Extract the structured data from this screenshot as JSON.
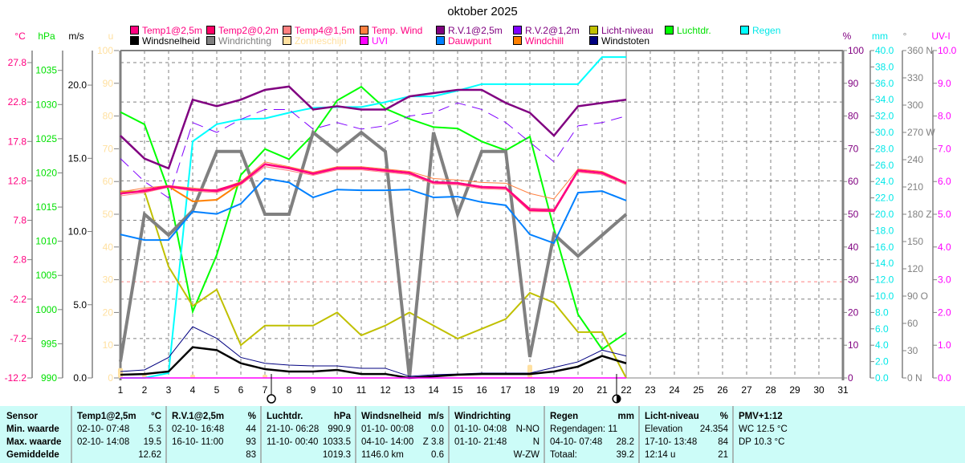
{
  "chart_data": {
    "type": "line",
    "title": "oktober 2025",
    "x": [
      1,
      2,
      3,
      4,
      5,
      6,
      7,
      8,
      9,
      10,
      11,
      12,
      13,
      14,
      15,
      16,
      17,
      18,
      19,
      20,
      21,
      22
    ],
    "x_ticks": [
      "1",
      "2",
      "3",
      "4",
      "5",
      "6",
      "7",
      "8",
      "9",
      "10",
      "11",
      "12",
      "13",
      "14",
      "15",
      "16",
      "17",
      "18",
      "19",
      "20",
      "21",
      "22",
      "23",
      "24",
      "25",
      "26",
      "27",
      "28",
      "29",
      "30",
      "31"
    ],
    "xlim": [
      1,
      31
    ],
    "grid": true,
    "legend_placement": "top",
    "axes": {
      "temp": {
        "label": "°C",
        "color": "#ff0080",
        "range": [
          -12.2,
          29.33
        ],
        "ticks": [
          "27.8",
          "22.8",
          "17.8",
          "12.8",
          "7.8",
          "2.8",
          "-2.2",
          "-7.2",
          "-12.2"
        ]
      },
      "hpa": {
        "label": "hPa",
        "color": "#00e000",
        "range": [
          990,
          1037.9
        ],
        "ticks": [
          "1035",
          "1030",
          "1025",
          "1020",
          "1015",
          "1010",
          "1005",
          "1000",
          "995",
          "990"
        ]
      },
      "ms": {
        "label": "m/s",
        "color": "#000000",
        "range": [
          0,
          22.36
        ],
        "ticks": [
          "20.0",
          "15.0",
          "10.0",
          "5.0",
          "0.0"
        ]
      },
      "u": {
        "label": "u",
        "color": "#ffe0a0",
        "range": [
          0,
          100
        ],
        "ticks": [
          "100",
          "90",
          "80",
          "70",
          "60",
          "50",
          "40",
          "30",
          "20",
          "10",
          "0"
        ]
      },
      "pct": {
        "label": "%",
        "color": "#800080",
        "range": [
          0,
          100
        ],
        "ticks": [
          "100",
          "90",
          "80",
          "70",
          "60",
          "50",
          "40",
          "30",
          "20",
          "10",
          "0"
        ]
      },
      "mm": {
        "label": "mm",
        "color": "#00e8e8",
        "range": [
          0,
          40
        ],
        "ticks": [
          "40.0",
          "38.0",
          "36.0",
          "34.0",
          "32.0",
          "30.0",
          "28.0",
          "26.0",
          "24.0",
          "22.0",
          "20.0",
          "18.0",
          "16.0",
          "14.0",
          "12.0",
          "10.0",
          "8.0",
          "6.0",
          "4.0",
          "2.0",
          "0.0"
        ]
      },
      "deg": {
        "label": "°",
        "color": "#808080",
        "range": [
          0,
          360
        ],
        "ticks": [
          "360 N",
          "330",
          "300",
          "270 W",
          "240",
          "210",
          "180 Z",
          "150",
          "120",
          "90  O",
          "60",
          "30",
          "0    N"
        ]
      },
      "uv": {
        "label": "UV-I",
        "color": "#ff00ff",
        "range": [
          0,
          10
        ],
        "ticks": [
          "10.0",
          "9.0",
          "8.0",
          "7.0",
          "6.0",
          "5.0",
          "4.0",
          "3.0",
          "2.0",
          "1.0",
          "0.0"
        ]
      }
    },
    "series": [
      {
        "name": "Luchtdr.",
        "axis": "hpa",
        "color": "#00ff00",
        "width": 2,
        "values": [
          1028.9,
          1027.1,
          1017.4,
          999.7,
          1008.0,
          1019.7,
          1023.5,
          1022.0,
          1025.6,
          1030.6,
          1032.6,
          1029.4,
          1027.9,
          1026.7,
          1026.5,
          1024.6,
          1023.3,
          1025.3,
          1011.8,
          999.3,
          994.2,
          996.6
        ]
      },
      {
        "name": "Regen",
        "axis": "mm",
        "color": "#00ffff",
        "width": 2,
        "values": [
          0,
          0,
          0.6,
          28.9,
          31.0,
          31.6,
          31.7,
          32.4,
          33.0,
          33.1,
          33.1,
          33.7,
          34.4,
          34.4,
          35.1,
          35.9,
          35.9,
          35.9,
          35.9,
          35.9,
          39.2,
          39.2
        ]
      },
      {
        "name": "Licht-niveau",
        "axis": "pct",
        "color": "#c0c000",
        "width": 2,
        "values": [
          57,
          57,
          34,
          22,
          27,
          10,
          16,
          16,
          16,
          20,
          13,
          16,
          20,
          16,
          12,
          15,
          18,
          26,
          23,
          14,
          14,
          0
        ]
      },
      {
        "name": "R.V.2@1,2m",
        "axis": "pct",
        "color": "#8000ff",
        "width": 1,
        "dash": "14 8",
        "values": [
          67,
          60,
          55,
          78,
          75,
          79,
          82,
          82,
          76,
          78,
          76,
          77,
          80,
          81,
          84,
          82,
          78,
          72,
          66,
          77,
          78,
          80
        ]
      },
      {
        "name": "R.V.1@2,5m",
        "axis": "pct",
        "color": "#800080",
        "width": 2.5,
        "values": [
          74,
          67,
          64,
          85,
          83,
          85,
          88,
          89,
          82,
          83,
          82,
          82,
          86,
          87,
          88,
          88,
          84,
          81,
          74,
          83,
          84,
          85
        ]
      },
      {
        "name": "Windrichting",
        "axis": "deg",
        "color": "#808080",
        "width": 4,
        "values": [
          18,
          180,
          157,
          184,
          249,
          249,
          180,
          180,
          270,
          249,
          270,
          249,
          0,
          270,
          180,
          249,
          249,
          23,
          158,
          134,
          157,
          180
        ]
      },
      {
        "name": "Dauwpunt",
        "axis": "temp",
        "color": "#0080ff",
        "width": 2,
        "values": [
          6.0,
          5.3,
          5.3,
          8.9,
          8.6,
          9.9,
          13.1,
          12.6,
          10.7,
          11.7,
          11.6,
          11.6,
          11.7,
          10.7,
          10.8,
          10.1,
          9.7,
          6.0,
          4.9,
          11.3,
          11.5,
          10.3
        ]
      },
      {
        "name": "Temp. Wind",
        "axis": "temp",
        "color": "#ff8040",
        "width": 1,
        "values": [
          11.4,
          11.9,
          12.2,
          11.9,
          11.6,
          12.7,
          15.2,
          14.6,
          13.9,
          14.6,
          14.6,
          14.3,
          14.0,
          13.1,
          12.9,
          12.6,
          12.5,
          11.2,
          10.5,
          14.3,
          14.0,
          12.6
        ]
      },
      {
        "name": "Temp4@1,5m",
        "axis": "temp",
        "color": "#ff8080",
        "width": 1,
        "values": [
          10.9,
          11.3,
          12.0,
          11.5,
          11.3,
          12.3,
          14.6,
          14.1,
          13.5,
          14.2,
          14.2,
          13.9,
          13.6,
          12.4,
          12.3,
          11.8,
          11.7,
          8.9,
          8.9,
          13.9,
          13.6,
          12.3
        ]
      },
      {
        "name": "Temp2@0,2m",
        "axis": "temp",
        "color": "#ff0066",
        "width": 1,
        "values": [
          11.1,
          11.7,
          12.2,
          11.6,
          11.7,
          12.6,
          15.0,
          14.5,
          13.8,
          14.5,
          14.5,
          14.2,
          13.9,
          12.7,
          12.6,
          12.1,
          12.0,
          9.3,
          9.2,
          14.2,
          13.9,
          12.6
        ]
      },
      {
        "name": "Windchill",
        "axis": "temp",
        "color": "#ff8000",
        "width": 2,
        "values": [
          11.2,
          11.5,
          12.1,
          10.2,
          10.4,
          12.5,
          14.9,
          14.4,
          13.7,
          14.4,
          14.4,
          14.1,
          13.8,
          12.6,
          12.5,
          12.0,
          11.9,
          9.1,
          9.0,
          14.1,
          13.8,
          12.5
        ]
      },
      {
        "name": "Temp1@2,5m",
        "axis": "temp",
        "color": "#ff0080",
        "width": 2.5,
        "values": [
          11.2,
          11.5,
          12.1,
          11.7,
          11.5,
          12.5,
          14.9,
          14.4,
          13.7,
          14.4,
          14.4,
          14.1,
          13.8,
          12.6,
          12.5,
          12.0,
          11.9,
          9.1,
          9.0,
          14.1,
          13.8,
          12.5
        ]
      },
      {
        "name": "Windstoten",
        "axis": "ms",
        "color": "#000080",
        "width": 1,
        "values": [
          0.44,
          0.55,
          1.4,
          3.5,
          2.7,
          1.4,
          1.0,
          0.88,
          0.82,
          0.82,
          0.66,
          0.66,
          0.11,
          0.22,
          0.27,
          0.33,
          0.33,
          0.33,
          0.71,
          1.1,
          1.9,
          1.5
        ]
      },
      {
        "name": "Windsnelheid",
        "axis": "ms",
        "color": "#000000",
        "width": 2.5,
        "values": [
          0.22,
          0.27,
          0.44,
          2.1,
          1.9,
          1.0,
          0.6,
          0.44,
          0.44,
          0.55,
          0.27,
          0.27,
          0,
          0.11,
          0.22,
          0.27,
          0.27,
          0.27,
          0.44,
          0.77,
          1.5,
          1.0
        ]
      },
      {
        "name": "UVI",
        "axis": "uv",
        "color": "#ff00ff",
        "width": 1.5,
        "values": [
          0,
          0,
          0,
          0,
          0,
          0,
          0,
          0,
          0,
          0,
          0,
          0,
          0,
          0,
          0,
          0,
          0,
          0,
          0,
          0,
          0,
          0
        ]
      }
    ],
    "bars": {
      "name": "Zonneschijn",
      "axis": "u",
      "color": "#ffe0a0",
      "values": [
        3,
        1,
        0,
        1,
        0,
        0,
        1,
        0,
        0,
        0,
        0,
        0,
        0,
        0,
        0,
        0,
        0,
        4,
        0,
        0,
        0,
        0
      ]
    }
  },
  "legend": [
    {
      "label": "Temp1@2,5m",
      "swatch": "#ff0080",
      "text": "#ff0080"
    },
    {
      "label": "Temp2@0,2m",
      "swatch": "#ff0066",
      "text": "#ff0080"
    },
    {
      "label": "Temp4@1,5m",
      "swatch": "#ff8080",
      "text": "#ff0080"
    },
    {
      "label": "Temp. Wind",
      "swatch": "#ff8040",
      "text": "#ff0080"
    },
    {
      "label": "R.V.1@2,5m",
      "swatch": "#800080",
      "text": "#800080"
    },
    {
      "label": "R.V.2@1,2m",
      "swatch": "#8000ff",
      "text": "#800080"
    },
    {
      "label": "Licht-niveau",
      "swatch": "#c0c000",
      "text": "#800080"
    },
    {
      "label": "Luchtdr.",
      "swatch": "#00ff00",
      "text": "#00e000"
    },
    {
      "label": "Regen",
      "swatch": "#00ffff",
      "text": "#00e8e8"
    },
    {
      "label": "Windsnelheid",
      "swatch": "#000000",
      "text": "#000000"
    },
    {
      "label": "Windrichting",
      "swatch": "#808080",
      "text": "#808080"
    },
    {
      "label": "Zonneschijn",
      "swatch": "#ffe0a0",
      "text": "#ffe0a0"
    },
    {
      "label": "UVI",
      "swatch": "#ff00ff",
      "text": "#ff00ff"
    },
    {
      "label": "Dauwpunt",
      "swatch": "#0080ff",
      "text": "#ff0080"
    },
    {
      "label": "Windchill",
      "swatch": "#ff8000",
      "text": "#ff0080"
    },
    {
      "label": "Windstoten",
      "swatch": "#000080",
      "text": "#000000"
    }
  ],
  "table": [
    {
      "header": "Sensor",
      "unit": "",
      "rows": [
        [
          "Min. waarde",
          ""
        ],
        [
          "Max. waarde",
          ""
        ],
        [
          "Gemiddelde",
          ""
        ]
      ],
      "bold": true
    },
    {
      "header": "Temp1@2,5m",
      "unit": "°C",
      "rows": [
        [
          "02-10-  07:48",
          "5.3"
        ],
        [
          "02-10-  14:08",
          "19.5"
        ],
        [
          "",
          "12.62"
        ]
      ]
    },
    {
      "header": "R.V.1@2,5m",
      "unit": "%",
      "rows": [
        [
          "02-10-  16:48",
          "44"
        ],
        [
          "16-10-  11:00",
          "93"
        ],
        [
          "",
          "83"
        ]
      ]
    },
    {
      "header": "Luchtdr.",
      "unit": "hPa",
      "rows": [
        [
          "21-10-  06:28",
          "990.9"
        ],
        [
          "11-10-  00:40",
          "1033.5"
        ],
        [
          "",
          "1019.3"
        ]
      ]
    },
    {
      "header": "Windsnelheid",
      "unit": "m/s",
      "rows": [
        [
          "01-10-  00:08",
          "0.0"
        ],
        [
          "04-10-  14:00",
          "Z 3.8"
        ],
        [
          "1146.0 km",
          "0.6"
        ]
      ]
    },
    {
      "header": "Windrichting",
      "unit": "",
      "rows": [
        [
          "01-10-  04:08",
          "N-NO"
        ],
        [
          "01-10-  21:48",
          "N"
        ],
        [
          "",
          "W-ZW"
        ]
      ]
    },
    {
      "header": "Regen",
      "unit": "mm",
      "rows": [
        [
          "Regendagen: 11",
          ""
        ],
        [
          "04-10-  07:48",
          "28.2"
        ],
        [
          "Totaal:",
          "39.2"
        ]
      ]
    },
    {
      "header": "Licht-niveau",
      "unit": "%",
      "rows": [
        [
          "Elevation",
          "24.354"
        ],
        [
          "17-10-  13:48",
          "84"
        ],
        [
          "12:14 u",
          "21"
        ]
      ]
    },
    {
      "header": "PMV+1:12",
      "unit": "",
      "rows": [
        [
          "WC 12.5 °C",
          ""
        ],
        [
          "DP 10.3 °C",
          ""
        ],
        [
          "",
          ""
        ]
      ]
    }
  ]
}
